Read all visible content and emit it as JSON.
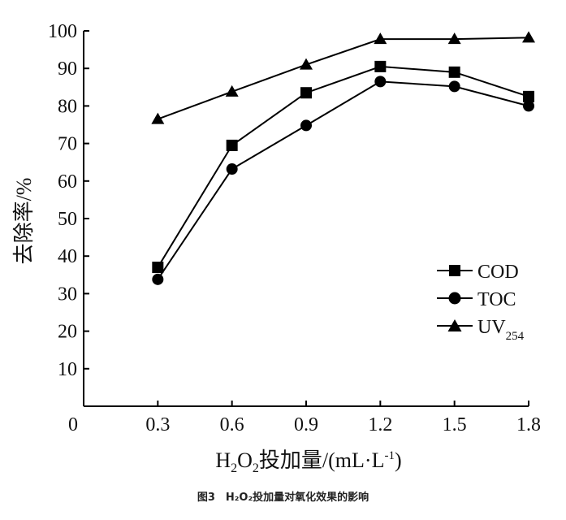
{
  "caption": "图3　H₂O₂投加量对氧化效果的影响",
  "chart_data": {
    "type": "line",
    "title": "",
    "ylabel": "去除率/%",
    "xlabel": {
      "prefix": "H",
      "sub1": "2",
      "mid": "O",
      "sub2": "2",
      "text": "投加量/(mL·L",
      "sup": "-1",
      "suffix": ")"
    },
    "origin_label": "0",
    "x": [
      0.3,
      0.6,
      0.9,
      1.2,
      1.5,
      1.8
    ],
    "x_tick_labels": [
      "0.3",
      "0.6",
      "0.9",
      "1.2",
      "1.5",
      "1.8"
    ],
    "y_ticks": [
      10,
      20,
      30,
      40,
      50,
      60,
      70,
      80,
      90,
      100
    ],
    "xlim": [
      0,
      1.8
    ],
    "ylim": [
      0,
      100
    ],
    "grid": false,
    "legend_position": "bottom-right",
    "series": [
      {
        "name": "COD",
        "marker": "square",
        "values": [
          37,
          69.5,
          83.5,
          90.5,
          89,
          82.5
        ]
      },
      {
        "name": "TOC",
        "marker": "circle",
        "values": [
          33.8,
          63.2,
          74.8,
          86.5,
          85.2,
          80
        ]
      },
      {
        "name": "UV",
        "name_sub": "254",
        "marker": "triangle",
        "values": [
          76.5,
          83.8,
          91,
          97.8,
          97.8,
          98.2
        ]
      }
    ]
  }
}
